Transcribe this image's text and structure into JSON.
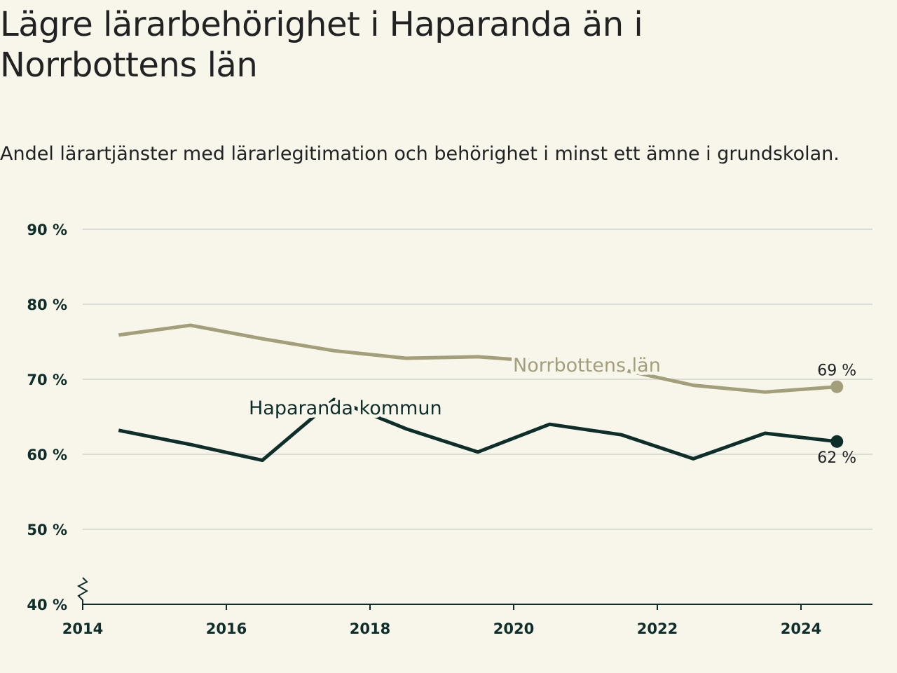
{
  "title": "Lägre lärarbehörighet i Haparanda än i Norrbottens län",
  "subtitle": "Andel lärartjänster med lärarlegitimation och behörighet i minst ett ämne i grundskolan.",
  "colors": {
    "background": "#f8f5eb",
    "grid": "#dcdcd6",
    "axis": "#0e2e2a",
    "norrbotten": "#a39f7a",
    "haparanda": "#0e2e2a"
  },
  "chart_data": {
    "type": "line",
    "title": "Lägre lärarbehörighet i Haparanda än i Norrbottens län",
    "subtitle": "Andel lärartjänster med lärarlegitimation och behörighet i minst ett ämne i grundskolan.",
    "xlim": [
      2014,
      2025
    ],
    "ylim": [
      40,
      90
    ],
    "x_ticks": [
      2014,
      2016,
      2018,
      2020,
      2022,
      2024
    ],
    "x_tick_labels": [
      "2014",
      "2016",
      "2018",
      "2020",
      "2022",
      "2024"
    ],
    "y_ticks": [
      40,
      50,
      60,
      70,
      80,
      90
    ],
    "y_tick_labels": [
      "40 %",
      "50 %",
      "60 %",
      "70 %",
      "80 %",
      "90 %"
    ],
    "grid": true,
    "axis_break": true,
    "x": [
      2014.5,
      2015.5,
      2016.5,
      2017.5,
      2018.5,
      2019.5,
      2020.5,
      2021.5,
      2022.5,
      2023.5,
      2024.5
    ],
    "series": [
      {
        "name": "Norrbottens län",
        "color": "#a39f7a",
        "values": [
          75.9,
          77.2,
          75.4,
          73.8,
          72.8,
          73.0,
          72.3,
          71.3,
          69.2,
          68.3,
          69.0
        ],
        "end_label": "69 %"
      },
      {
        "name": "Haparanda kommun",
        "color": "#0e2e2a",
        "values": [
          63.2,
          61.3,
          59.2,
          67.3,
          63.4,
          60.3,
          64.0,
          62.6,
          59.4,
          62.8,
          61.7
        ],
        "end_label": "62 %"
      }
    ]
  }
}
